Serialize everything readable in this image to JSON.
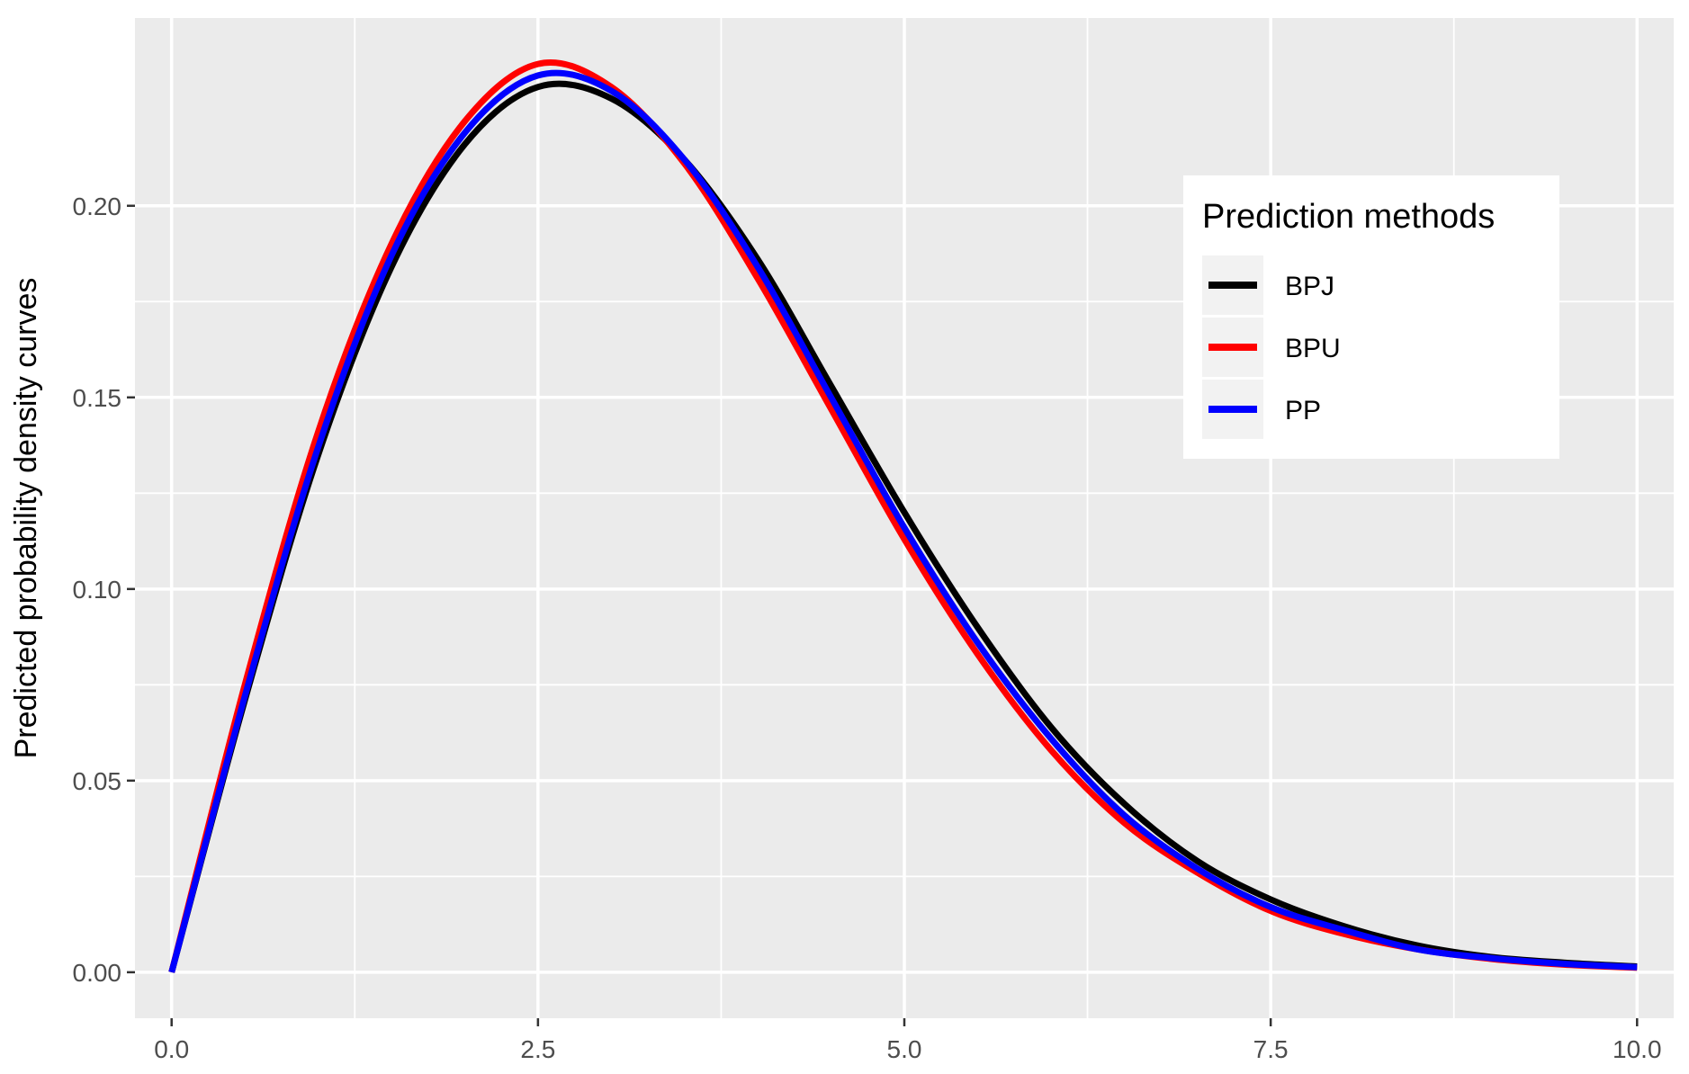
{
  "chart_data": {
    "type": "line",
    "title": "",
    "xlabel": "",
    "ylabel": "Predicted probability density curves",
    "xlim": [
      -0.25,
      10.25
    ],
    "ylim": [
      -0.012,
      0.249
    ],
    "x_ticks": [
      0.0,
      2.5,
      5.0,
      7.5,
      10.0
    ],
    "x_tick_labels": [
      "0.0",
      "2.5",
      "5.0",
      "7.5",
      "10.0"
    ],
    "y_ticks": [
      0.0,
      0.05,
      0.1,
      0.15,
      0.2
    ],
    "y_tick_labels": [
      "0.00",
      "0.05",
      "0.10",
      "0.15",
      "0.20"
    ],
    "grid": true,
    "legend": {
      "title": "Prediction methods",
      "position": "right-inside-top"
    },
    "x": [
      0.0,
      0.5,
      1.0,
      1.5,
      2.0,
      2.5,
      3.0,
      3.5,
      4.0,
      4.5,
      5.0,
      5.5,
      6.0,
      6.5,
      7.0,
      7.5,
      8.0,
      8.5,
      9.0,
      9.5,
      10.0
    ],
    "series": [
      {
        "name": "BPJ",
        "color": "#000000",
        "values": [
          0.0,
          0.071,
          0.135,
          0.184,
          0.216,
          0.231,
          0.228,
          0.212,
          0.186,
          0.153,
          0.12,
          0.09,
          0.064,
          0.044,
          0.029,
          0.019,
          0.012,
          0.007,
          0.004,
          0.0025,
          0.0015
        ]
      },
      {
        "name": "BPU",
        "color": "#ff0000",
        "values": [
          0.0,
          0.075,
          0.141,
          0.19,
          0.222,
          0.237,
          0.231,
          0.211,
          0.181,
          0.147,
          0.113,
          0.083,
          0.058,
          0.039,
          0.026,
          0.016,
          0.01,
          0.006,
          0.0035,
          0.002,
          0.0012
        ]
      },
      {
        "name": "PP",
        "color": "#0000ff",
        "values": [
          0.0,
          0.072,
          0.137,
          0.187,
          0.219,
          0.234,
          0.23,
          0.212,
          0.184,
          0.15,
          0.116,
          0.086,
          0.061,
          0.041,
          0.027,
          0.017,
          0.011,
          0.006,
          0.0037,
          0.0022,
          0.0013
        ]
      }
    ]
  }
}
